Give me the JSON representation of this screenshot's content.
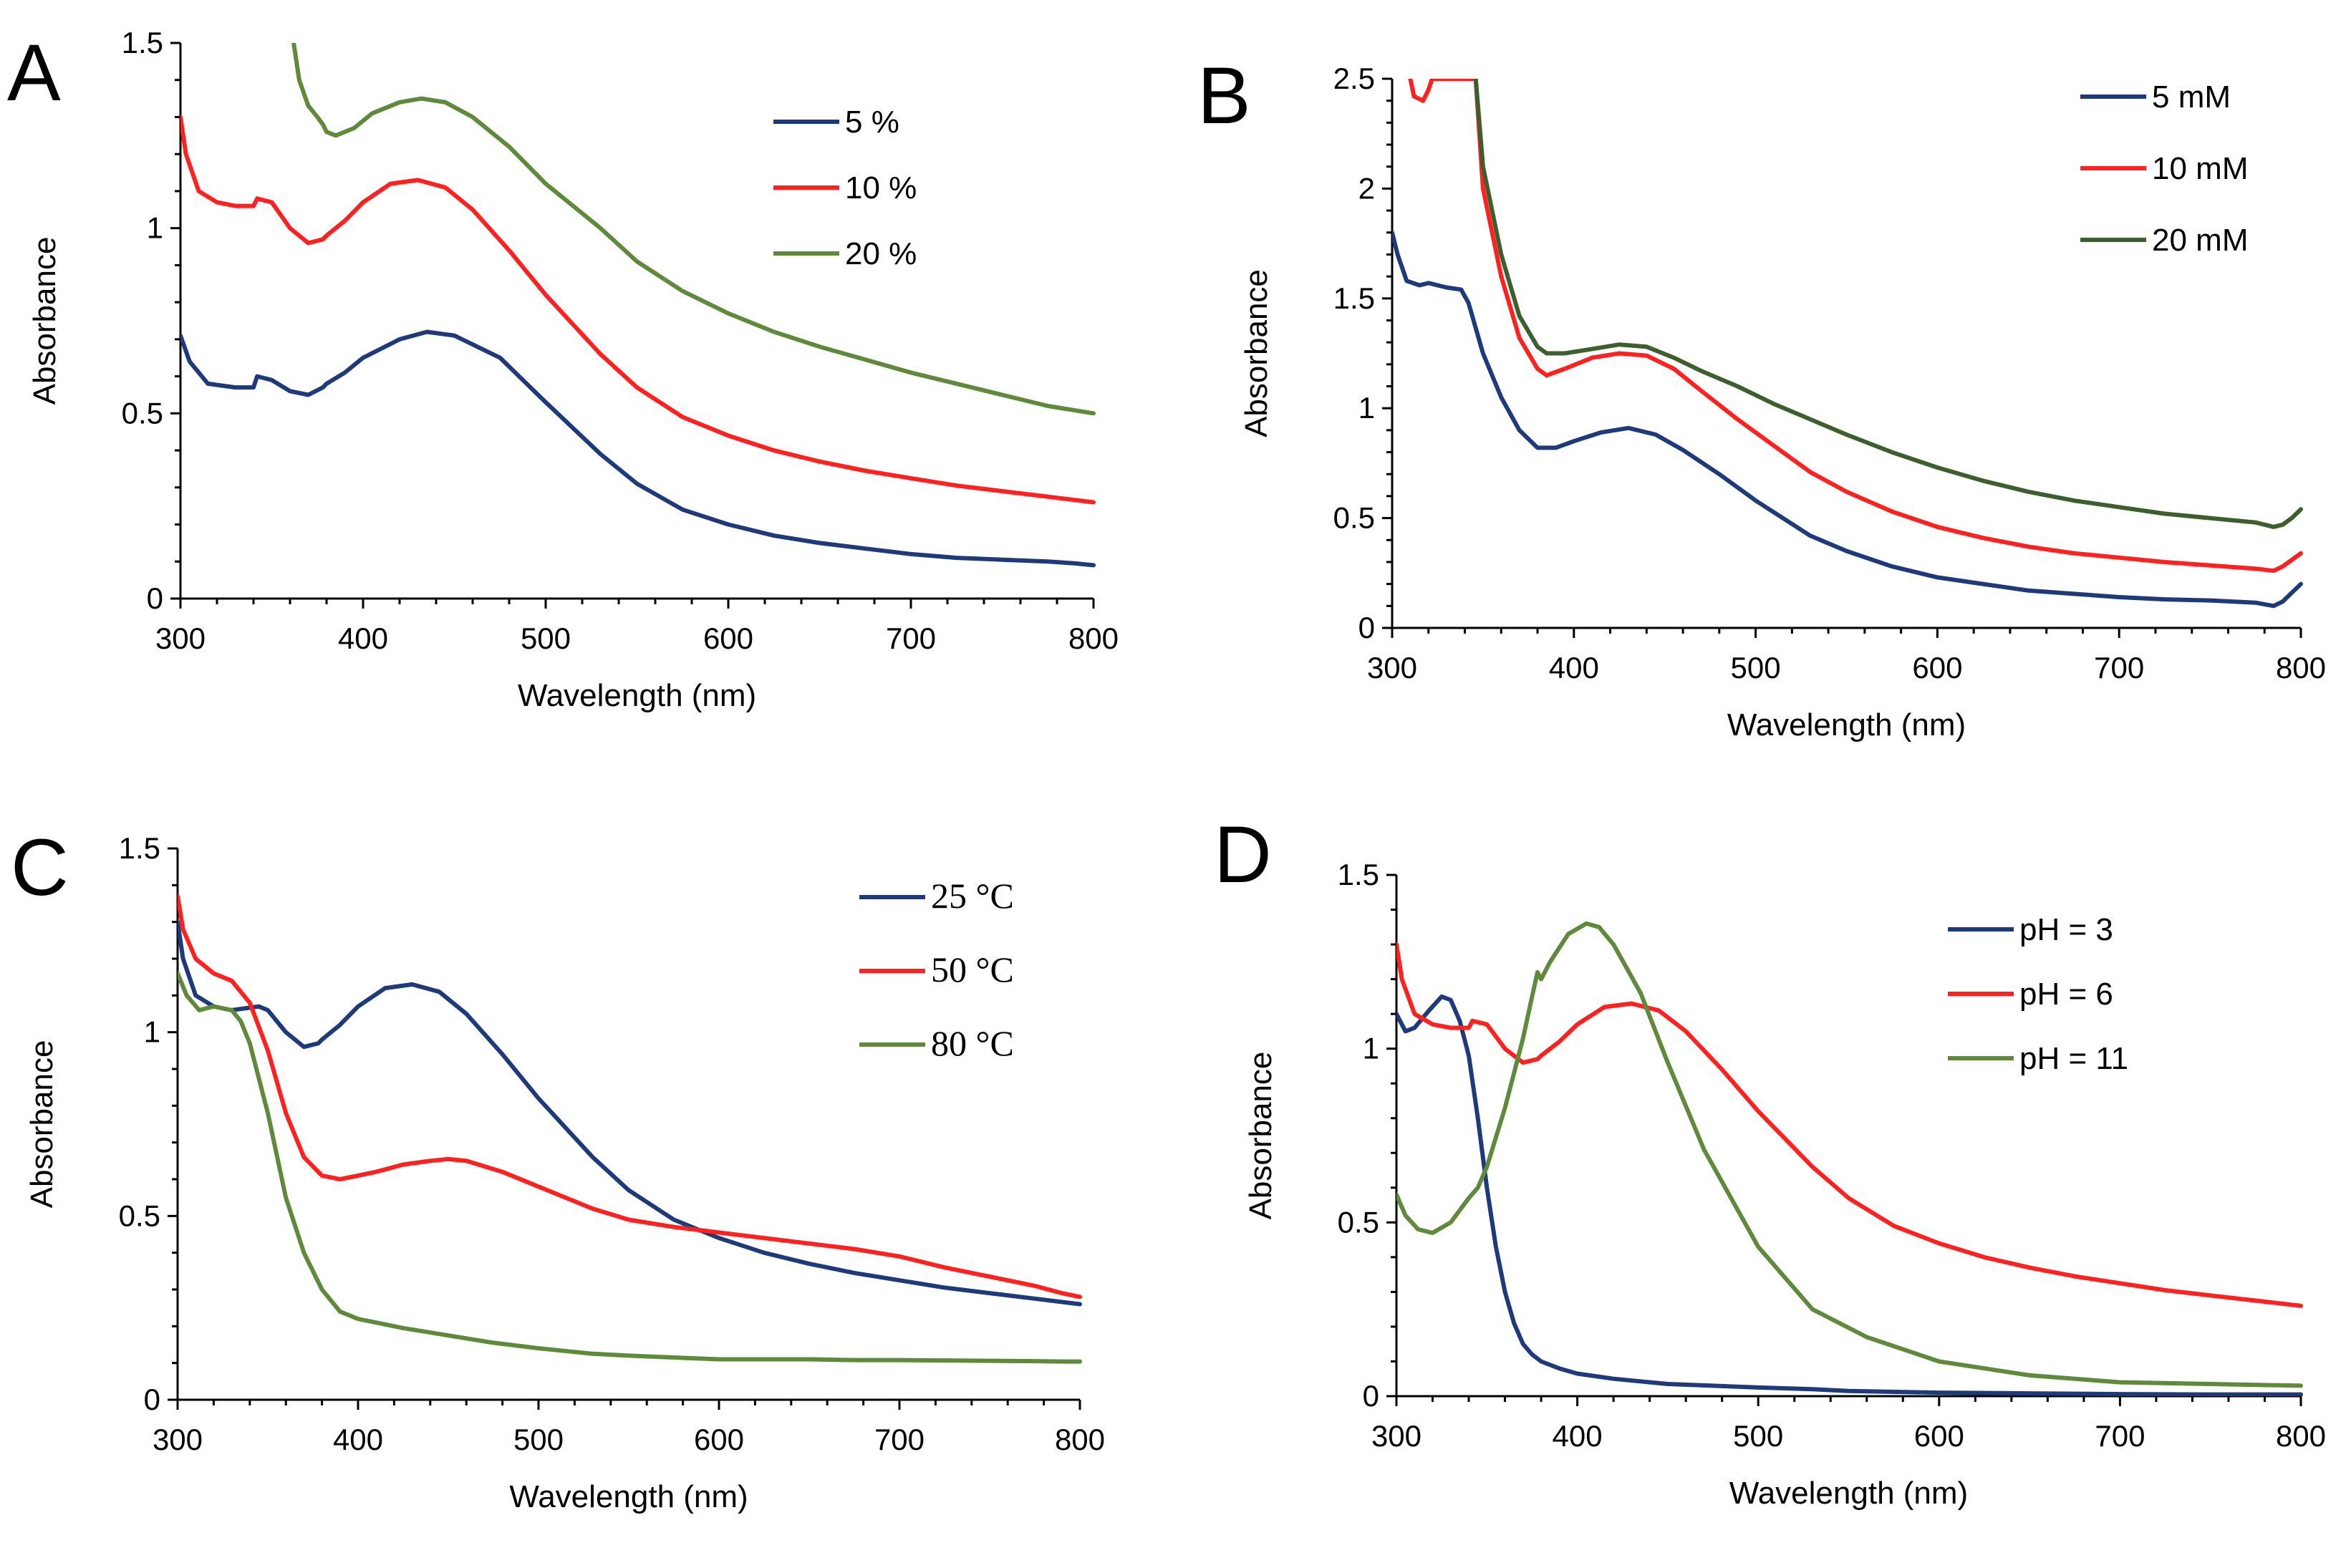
{
  "chart_data": [
    {
      "panel": "A",
      "type": "line",
      "xlabel": "Wavelength (nm)",
      "ylabel": "Absorbance",
      "xlim": [
        300,
        800
      ],
      "ylim": [
        0,
        1.5
      ],
      "xticks": [
        300,
        400,
        500,
        600,
        700,
        800
      ],
      "yticks": [
        0,
        0.5,
        1,
        1.5
      ],
      "ytick_labels": [
        "0",
        "0.5",
        "1",
        "1.5"
      ],
      "legend_position": "top-right",
      "legend_style": "sans",
      "series": [
        {
          "name": "5 %",
          "color": "#1f3a7a",
          "x": [
            300,
            305,
            315,
            330,
            340,
            342,
            350,
            360,
            370,
            378,
            380,
            390,
            400,
            420,
            435,
            450,
            475,
            500,
            530,
            550,
            575,
            600,
            625,
            650,
            675,
            700,
            725,
            750,
            775,
            790,
            800
          ],
          "y": [
            0.71,
            0.64,
            0.58,
            0.57,
            0.57,
            0.6,
            0.59,
            0.56,
            0.55,
            0.57,
            0.58,
            0.61,
            0.65,
            0.7,
            0.72,
            0.71,
            0.65,
            0.53,
            0.39,
            0.31,
            0.24,
            0.2,
            0.17,
            0.15,
            0.135,
            0.12,
            0.11,
            0.105,
            0.1,
            0.095,
            0.09
          ]
        },
        {
          "name": "10 %",
          "color": "#ff2020",
          "x": [
            300,
            303,
            310,
            320,
            330,
            340,
            342,
            350,
            360,
            370,
            378,
            380,
            390,
            400,
            415,
            430,
            445,
            460,
            480,
            500,
            530,
            550,
            575,
            600,
            625,
            650,
            675,
            700,
            725,
            750,
            775,
            800
          ],
          "y": [
            1.3,
            1.2,
            1.1,
            1.07,
            1.06,
            1.06,
            1.08,
            1.07,
            1.0,
            0.96,
            0.97,
            0.98,
            1.02,
            1.07,
            1.12,
            1.13,
            1.11,
            1.05,
            0.94,
            0.82,
            0.66,
            0.57,
            0.49,
            0.44,
            0.4,
            0.37,
            0.345,
            0.325,
            0.305,
            0.29,
            0.275,
            0.26
          ]
        },
        {
          "name": "20 %",
          "color": "#5f8a3b",
          "x": [
            362,
            365,
            370,
            375,
            378,
            380,
            385,
            395,
            405,
            420,
            432,
            445,
            460,
            480,
            500,
            530,
            550,
            575,
            600,
            625,
            650,
            675,
            700,
            725,
            750,
            775,
            800
          ],
          "y": [
            1.5,
            1.4,
            1.33,
            1.3,
            1.28,
            1.26,
            1.25,
            1.27,
            1.31,
            1.34,
            1.35,
            1.34,
            1.3,
            1.22,
            1.12,
            1.0,
            0.91,
            0.83,
            0.77,
            0.72,
            0.68,
            0.645,
            0.61,
            0.58,
            0.55,
            0.52,
            0.5
          ]
        }
      ]
    },
    {
      "panel": "B",
      "type": "line",
      "xlabel": "Wavelength (nm)",
      "ylabel": "Absorbance",
      "xlim": [
        300,
        800
      ],
      "ylim": [
        0,
        2.5
      ],
      "xticks": [
        300,
        400,
        500,
        600,
        700,
        800
      ],
      "yticks": [
        0,
        0.5,
        1,
        1.5,
        2,
        2.5
      ],
      "ytick_labels": [
        "0",
        "0.5",
        "1",
        "1.5",
        "2",
        "2.5"
      ],
      "legend_position": "top-right",
      "legend_style": "sans",
      "series": [
        {
          "name": "5 mM",
          "color": "#1f3a7a",
          "x": [
            300,
            303,
            308,
            315,
            320,
            330,
            338,
            342,
            350,
            360,
            370,
            380,
            390,
            400,
            415,
            430,
            445,
            460,
            480,
            500,
            530,
            550,
            575,
            600,
            625,
            650,
            675,
            700,
            725,
            750,
            775,
            785,
            790,
            795,
            800
          ],
          "y": [
            1.8,
            1.7,
            1.58,
            1.56,
            1.57,
            1.55,
            1.54,
            1.48,
            1.25,
            1.05,
            0.9,
            0.82,
            0.82,
            0.85,
            0.89,
            0.91,
            0.88,
            0.81,
            0.7,
            0.58,
            0.42,
            0.35,
            0.28,
            0.23,
            0.2,
            0.17,
            0.155,
            0.14,
            0.13,
            0.125,
            0.115,
            0.1,
            0.12,
            0.16,
            0.2
          ]
        },
        {
          "name": "10 mM",
          "color": "#ff2020",
          "x": [
            310,
            312,
            317,
            320,
            322,
            346,
            350,
            360,
            370,
            380,
            385,
            395,
            410,
            425,
            440,
            455,
            470,
            490,
            510,
            530,
            550,
            575,
            600,
            625,
            650,
            675,
            700,
            725,
            750,
            775,
            785,
            790,
            795,
            800
          ],
          "y": [
            2.5,
            2.42,
            2.4,
            2.45,
            2.5,
            2.5,
            2.0,
            1.6,
            1.32,
            1.18,
            1.15,
            1.18,
            1.23,
            1.25,
            1.24,
            1.18,
            1.08,
            0.95,
            0.83,
            0.71,
            0.62,
            0.53,
            0.46,
            0.41,
            0.37,
            0.34,
            0.32,
            0.3,
            0.285,
            0.27,
            0.26,
            0.28,
            0.31,
            0.34
          ]
        },
        {
          "name": "20 mM",
          "color": "#3d5e2d",
          "x": [
            346,
            350,
            360,
            370,
            380,
            385,
            395,
            410,
            425,
            440,
            455,
            470,
            490,
            510,
            530,
            550,
            575,
            600,
            625,
            650,
            675,
            700,
            725,
            750,
            775,
            785,
            790,
            795,
            800
          ],
          "y": [
            2.5,
            2.1,
            1.7,
            1.42,
            1.28,
            1.25,
            1.25,
            1.27,
            1.29,
            1.28,
            1.23,
            1.17,
            1.1,
            1.02,
            0.95,
            0.88,
            0.8,
            0.73,
            0.67,
            0.62,
            0.58,
            0.55,
            0.52,
            0.5,
            0.48,
            0.46,
            0.47,
            0.5,
            0.54
          ]
        }
      ]
    },
    {
      "panel": "C",
      "type": "line",
      "xlabel": "Wavelength (nm)",
      "ylabel": "Absorbance",
      "xlim": [
        300,
        800
      ],
      "ylim": [
        0,
        1.5
      ],
      "xticks": [
        300,
        400,
        500,
        600,
        700,
        800
      ],
      "yticks": [
        0,
        0.5,
        1,
        1.5
      ],
      "ytick_labels": [
        "0",
        "0.5",
        "1",
        "1.5"
      ],
      "legend_position": "top-right",
      "legend_style": "serif",
      "series": [
        {
          "name": "25 °C",
          "color": "#1f3a7a",
          "x": [
            300,
            303,
            310,
            320,
            330,
            345,
            350,
            360,
            370,
            378,
            380,
            390,
            400,
            415,
            430,
            445,
            460,
            480,
            500,
            530,
            550,
            575,
            600,
            625,
            650,
            675,
            700,
            725,
            750,
            775,
            800
          ],
          "y": [
            1.3,
            1.2,
            1.1,
            1.07,
            1.06,
            1.07,
            1.06,
            1.0,
            0.96,
            0.97,
            0.98,
            1.02,
            1.07,
            1.12,
            1.13,
            1.11,
            1.05,
            0.94,
            0.82,
            0.66,
            0.57,
            0.49,
            0.44,
            0.4,
            0.37,
            0.345,
            0.325,
            0.305,
            0.29,
            0.275,
            0.26
          ]
        },
        {
          "name": "50 °C",
          "color": "#ff2020",
          "x": [
            300,
            303,
            310,
            320,
            330,
            340,
            350,
            360,
            370,
            380,
            390,
            400,
            410,
            425,
            440,
            450,
            460,
            480,
            500,
            530,
            550,
            575,
            600,
            625,
            650,
            675,
            700,
            725,
            750,
            775,
            790,
            800
          ],
          "y": [
            1.37,
            1.28,
            1.2,
            1.16,
            1.14,
            1.08,
            0.95,
            0.78,
            0.66,
            0.61,
            0.6,
            0.61,
            0.62,
            0.64,
            0.65,
            0.655,
            0.65,
            0.62,
            0.58,
            0.52,
            0.49,
            0.47,
            0.455,
            0.44,
            0.425,
            0.41,
            0.39,
            0.36,
            0.335,
            0.31,
            0.29,
            0.28
          ]
        },
        {
          "name": "80 °C",
          "color": "#5f8a3b",
          "x": [
            300,
            305,
            312,
            320,
            330,
            335,
            340,
            350,
            360,
            370,
            380,
            390,
            400,
            425,
            450,
            475,
            500,
            530,
            550,
            575,
            600,
            625,
            650,
            675,
            700,
            725,
            750,
            775,
            790,
            800
          ],
          "y": [
            1.16,
            1.1,
            1.06,
            1.07,
            1.06,
            1.03,
            0.97,
            0.78,
            0.55,
            0.4,
            0.3,
            0.24,
            0.22,
            0.195,
            0.175,
            0.155,
            0.14,
            0.125,
            0.12,
            0.115,
            0.11,
            0.11,
            0.11,
            0.108,
            0.108,
            0.107,
            0.106,
            0.105,
            0.104,
            0.104
          ]
        }
      ]
    },
    {
      "panel": "D",
      "type": "line",
      "xlabel": "Wavelength (nm)",
      "ylabel": "Absorbance",
      "xlim": [
        300,
        800
      ],
      "ylim": [
        0,
        1.5
      ],
      "xticks": [
        300,
        400,
        500,
        600,
        700,
        800
      ],
      "yticks": [
        0,
        0.5,
        1,
        1.5
      ],
      "ytick_labels": [
        "0",
        "0.5",
        "1",
        "1.5"
      ],
      "legend_position": "top-right",
      "legend_style": "sans",
      "series": [
        {
          "name": "pH = 3",
          "color": "#1f3a7a",
          "x": [
            300,
            305,
            310,
            318,
            325,
            330,
            335,
            340,
            345,
            350,
            355,
            360,
            365,
            370,
            375,
            380,
            390,
            400,
            420,
            450,
            500,
            530,
            550,
            600,
            650,
            700,
            750,
            800
          ],
          "y": [
            1.1,
            1.05,
            1.06,
            1.11,
            1.15,
            1.14,
            1.08,
            0.98,
            0.8,
            0.6,
            0.43,
            0.3,
            0.21,
            0.15,
            0.12,
            0.1,
            0.08,
            0.065,
            0.05,
            0.035,
            0.025,
            0.02,
            0.015,
            0.01,
            0.008,
            0.006,
            0.005,
            0.005
          ]
        },
        {
          "name": "pH = 6",
          "color": "#ff2020",
          "x": [
            300,
            303,
            310,
            320,
            330,
            340,
            342,
            350,
            360,
            370,
            378,
            380,
            390,
            400,
            415,
            430,
            445,
            460,
            480,
            500,
            530,
            550,
            575,
            600,
            625,
            650,
            675,
            700,
            725,
            750,
            775,
            800
          ],
          "y": [
            1.3,
            1.2,
            1.1,
            1.07,
            1.06,
            1.06,
            1.08,
            1.07,
            1.0,
            0.96,
            0.97,
            0.98,
            1.02,
            1.07,
            1.12,
            1.13,
            1.11,
            1.05,
            0.94,
            0.82,
            0.66,
            0.57,
            0.49,
            0.44,
            0.4,
            0.37,
            0.345,
            0.325,
            0.305,
            0.29,
            0.275,
            0.26
          ]
        },
        {
          "name": "pH = 11",
          "color": "#5f8a3b",
          "x": [
            300,
            305,
            312,
            320,
            330,
            340,
            345,
            350,
            360,
            370,
            375,
            378,
            380,
            385,
            395,
            405,
            412,
            420,
            435,
            450,
            470,
            500,
            530,
            560,
            600,
            650,
            700,
            750,
            800
          ],
          "y": [
            0.58,
            0.52,
            0.48,
            0.47,
            0.5,
            0.57,
            0.6,
            0.66,
            0.83,
            1.03,
            1.15,
            1.22,
            1.2,
            1.25,
            1.33,
            1.36,
            1.35,
            1.3,
            1.16,
            0.96,
            0.71,
            0.43,
            0.25,
            0.17,
            0.1,
            0.06,
            0.04,
            0.035,
            0.03
          ]
        }
      ]
    }
  ]
}
